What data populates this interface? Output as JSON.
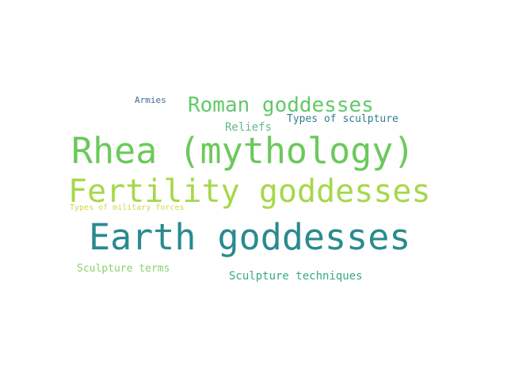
{
  "words": [
    {
      "text": "Earth goddesses",
      "color": "#2a8a8f"
    },
    {
      "text": "Rhea (mythology)",
      "color": "#6cc95c"
    },
    {
      "text": "Fertility goddesses",
      "color": "#a6d84a"
    },
    {
      "text": "Roman goddesses",
      "color": "#63c969"
    },
    {
      "text": "Reliefs",
      "color": "#5fb889"
    },
    {
      "text": "Types of sculpture",
      "color": "#2f7f8f"
    },
    {
      "text": "Armies",
      "color": "#3f6b93"
    },
    {
      "text": "Types of military forces",
      "color": "#d4d44f"
    },
    {
      "text": "Sculpture terms",
      "color": "#8ad26b"
    },
    {
      "text": "Sculpture techniques",
      "color": "#3aa88c"
    }
  ]
}
